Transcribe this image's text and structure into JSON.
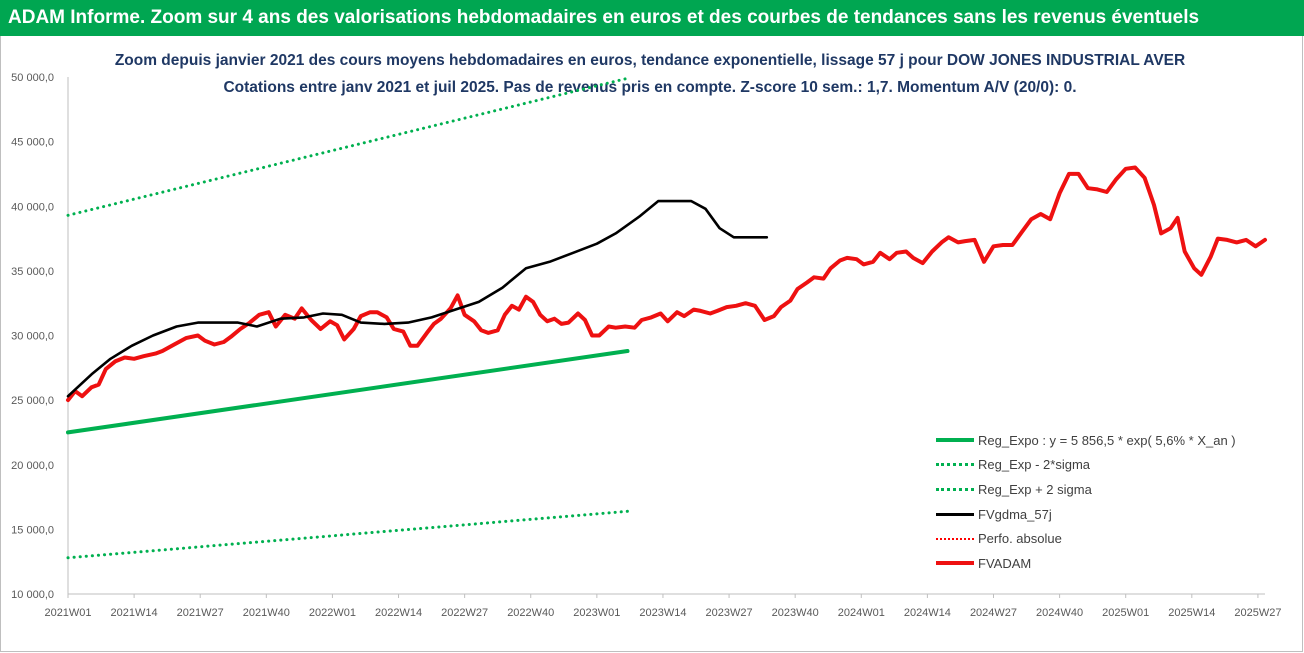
{
  "header": {
    "banner": "ADAM Informe. Zoom sur 4 ans des valorisations hebdomadaires en euros et des courbes de tendances sans les revenus éventuels",
    "banner_color": "#00a651"
  },
  "chart_data": {
    "type": "line",
    "title": "Zoom depuis janvier 2021 des cours moyens hebdomadaires en euros, tendance exponentielle, lissage 57 j pour DOW JONES INDUSTRIAL AVER",
    "subtitle": "Cotations entre janv 2021 et juil 2025. Pas de revenus pris en compte. Z-score 10 sem.: 1,7. Momentum A/V (20/0): 0.",
    "xlabel": "",
    "ylabel": "",
    "ylim": [
      10000,
      50000
    ],
    "yticks": [
      "10 000,0",
      "15 000,0",
      "20 000,0",
      "25 000,0",
      "30 000,0",
      "35 000,0",
      "40 000,0",
      "45 000,0",
      "50 000,0"
    ],
    "xticks": [
      "2021W01",
      "2021W14",
      "2021W27",
      "2021W40",
      "2022W01",
      "2022W14",
      "2022W27",
      "2022W40",
      "2023W01",
      "2023W14",
      "2023W27",
      "2023W40",
      "2024W01",
      "2024W14",
      "2024W27",
      "2024W40",
      "2025W01",
      "2025W14",
      "2025W27"
    ],
    "grid": false,
    "legend_position": "bottom-right",
    "series": [
      {
        "name": "Reg_Expo : y = 5 856,5 * exp( 5,6% *  X_an )",
        "color": "#00b050",
        "style": "solid-thick",
        "points": [
          [
            0,
            22500
          ],
          [
            237,
            28800
          ]
        ]
      },
      {
        "name": "Reg_Exp - 2*sigma",
        "color": "#00b050",
        "style": "dotted",
        "points": [
          [
            0,
            12800
          ],
          [
            237,
            16400
          ]
        ]
      },
      {
        "name": "Reg_Exp + 2 sigma",
        "color": "#00b050",
        "style": "dotted",
        "points": [
          [
            0,
            39300
          ],
          [
            237,
            49900
          ]
        ]
      },
      {
        "name": "FVgdma_57j",
        "color": "#000000",
        "style": "solid",
        "points": [
          [
            0,
            25300
          ],
          [
            10,
            27000
          ],
          [
            18,
            28200
          ],
          [
            27,
            29200
          ],
          [
            36,
            30000
          ],
          [
            46,
            30700
          ],
          [
            55,
            31000
          ],
          [
            64,
            31000
          ],
          [
            72,
            31000
          ],
          [
            80,
            30700
          ],
          [
            90,
            31300
          ],
          [
            100,
            31400
          ],
          [
            108,
            31700
          ],
          [
            116,
            31600
          ],
          [
            124,
            31000
          ],
          [
            134,
            30900
          ],
          [
            144,
            31000
          ],
          [
            154,
            31400
          ],
          [
            164,
            32000
          ],
          [
            174,
            32600
          ],
          [
            184,
            33700
          ],
          [
            194,
            35200
          ],
          [
            204,
            35700
          ],
          [
            214,
            36400
          ],
          [
            224,
            37100
          ],
          [
            232,
            37900
          ],
          [
            242,
            39200
          ],
          [
            250,
            40400
          ],
          [
            258,
            40400
          ],
          [
            264,
            40400
          ],
          [
            270,
            39800
          ],
          [
            276,
            38300
          ],
          [
            282,
            37600
          ],
          [
            290,
            37600
          ],
          [
            296,
            37600
          ]
        ]
      },
      {
        "name": "Perfo. absolue",
        "color": "#ff0000",
        "style": "dotted",
        "points": []
      },
      {
        "name": "FVADAM",
        "color": "#ee1111",
        "style": "solid-thick",
        "points": [
          [
            0,
            25000
          ],
          [
            3,
            25700
          ],
          [
            6,
            25300
          ],
          [
            10,
            26000
          ],
          [
            13,
            26200
          ],
          [
            16,
            27400
          ],
          [
            20,
            28000
          ],
          [
            24,
            28300
          ],
          [
            28,
            28200
          ],
          [
            32,
            28400
          ],
          [
            37,
            28600
          ],
          [
            40,
            28800
          ],
          [
            45,
            29300
          ],
          [
            50,
            29800
          ],
          [
            55,
            30000
          ],
          [
            58,
            29600
          ],
          [
            62,
            29300
          ],
          [
            66,
            29500
          ],
          [
            69,
            29900
          ],
          [
            73,
            30500
          ],
          [
            77,
            31000
          ],
          [
            81,
            31600
          ],
          [
            85,
            31800
          ],
          [
            88,
            30700
          ],
          [
            92,
            31600
          ],
          [
            96,
            31300
          ],
          [
            99,
            32100
          ],
          [
            103,
            31200
          ],
          [
            107,
            30500
          ],
          [
            111,
            31100
          ],
          [
            114,
            30800
          ],
          [
            117,
            29700
          ],
          [
            121,
            30500
          ],
          [
            124,
            31500
          ],
          [
            128,
            31800
          ],
          [
            131,
            31800
          ],
          [
            135,
            31400
          ],
          [
            138,
            30500
          ],
          [
            142,
            30300
          ],
          [
            145,
            29200
          ],
          [
            148,
            29200
          ],
          [
            152,
            30200
          ],
          [
            155,
            30900
          ],
          [
            158,
            31300
          ],
          [
            162,
            32100
          ],
          [
            165,
            33100
          ],
          [
            168,
            31600
          ],
          [
            172,
            31100
          ],
          [
            175,
            30400
          ],
          [
            178,
            30200
          ],
          [
            182,
            30400
          ],
          [
            185,
            31600
          ],
          [
            188,
            32300
          ],
          [
            191,
            32000
          ],
          [
            194,
            33000
          ],
          [
            197,
            32600
          ],
          [
            200,
            31600
          ],
          [
            203,
            31100
          ],
          [
            206,
            31300
          ],
          [
            209,
            30900
          ],
          [
            212,
            31000
          ],
          [
            216,
            31700
          ],
          [
            219,
            31200
          ],
          [
            222,
            30000
          ],
          [
            225,
            30000
          ],
          [
            229,
            30700
          ],
          [
            232,
            30600
          ],
          [
            236,
            30700
          ],
          [
            240,
            30600
          ],
          [
            243,
            31200
          ],
          [
            247,
            31400
          ],
          [
            251,
            31700
          ],
          [
            254,
            31100
          ],
          [
            258,
            31800
          ],
          [
            261,
            31500
          ],
          [
            265,
            32000
          ],
          [
            268,
            31900
          ],
          [
            272,
            31700
          ],
          [
            275,
            31900
          ],
          [
            279,
            32200
          ],
          [
            283,
            32300
          ],
          [
            287,
            32500
          ],
          [
            291,
            32300
          ],
          [
            295,
            31200
          ],
          [
            299,
            31500
          ],
          [
            302,
            32200
          ],
          [
            306,
            32700
          ],
          [
            309,
            33600
          ],
          [
            313,
            34100
          ],
          [
            316,
            34500
          ],
          [
            320,
            34400
          ],
          [
            323,
            35200
          ],
          [
            327,
            35800
          ],
          [
            330,
            36000
          ],
          [
            334,
            35900
          ],
          [
            337,
            35500
          ],
          [
            341,
            35700
          ],
          [
            344,
            36400
          ],
          [
            348,
            35900
          ],
          [
            351,
            36400
          ],
          [
            355,
            36500
          ],
          [
            358,
            36000
          ],
          [
            362,
            35600
          ],
          [
            366,
            36500
          ],
          [
            370,
            37200
          ],
          [
            373,
            37600
          ],
          [
            377,
            37200
          ],
          [
            380,
            37300
          ],
          [
            384,
            37400
          ],
          [
            388,
            35700
          ],
          [
            392,
            36900
          ],
          [
            396,
            37000
          ],
          [
            400,
            37000
          ],
          [
            404,
            38000
          ],
          [
            408,
            39000
          ],
          [
            412,
            39400
          ],
          [
            416,
            39000
          ],
          [
            420,
            41000
          ],
          [
            424,
            42500
          ],
          [
            428,
            42500
          ],
          [
            432,
            41400
          ],
          [
            436,
            41300
          ],
          [
            440,
            41100
          ],
          [
            444,
            42100
          ],
          [
            448,
            42900
          ],
          [
            452,
            43000
          ],
          [
            456,
            42200
          ],
          [
            460,
            40100
          ],
          [
            463,
            37900
          ],
          [
            467,
            38300
          ],
          [
            470,
            39100
          ],
          [
            473,
            36500
          ],
          [
            477,
            35200
          ],
          [
            480,
            34700
          ],
          [
            484,
            36100
          ],
          [
            487,
            37500
          ],
          [
            491,
            37400
          ],
          [
            495,
            37200
          ],
          [
            499,
            37400
          ],
          [
            503,
            36900
          ],
          [
            507,
            37400
          ]
        ]
      }
    ]
  }
}
